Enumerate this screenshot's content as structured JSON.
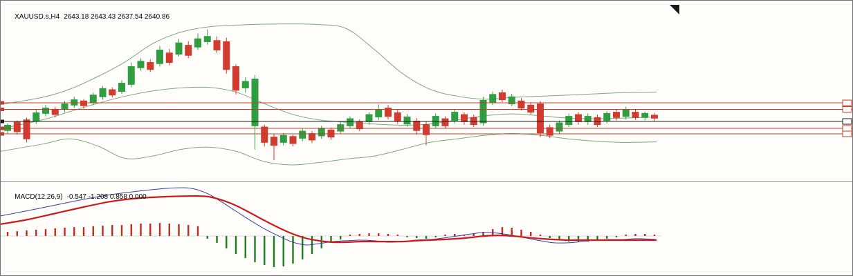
{
  "price_panel": {
    "symbol_label": "XAUUSD.s,H4",
    "ohlc_label": "2643.18 2643.43 2637.54 2640.86"
  },
  "macd_panel": {
    "indicator_label": "MACD(12,26,9)",
    "values_label": "-0.547 -1.208 0.858 0.000"
  },
  "colors": {
    "background": "#fffefa",
    "border": "#707070",
    "bull": "#2f9e41",
    "bear": "#d23b2f",
    "bollinger": "#79a87e",
    "hline_red": "#c43a2e",
    "trend_black": "#1a1a1a",
    "macd_line_blue": "#3a3aa8",
    "signal_line_red": "#cc1a1a",
    "hist_up_red": "#c22a1e",
    "hist_down_green": "#1c7d1c",
    "separator": "#8a8a8a",
    "zero_line": "#dcdcdc",
    "text": "#000000",
    "marker": "#1a1a1a"
  },
  "chart_data": [
    {
      "type": "candlestick",
      "title": "XAUUSD.s,H4",
      "ohlc_current": {
        "open": 2643.18,
        "high": 2643.43,
        "low": 2637.54,
        "close": 2640.86
      },
      "price_axis": {
        "min": 2534,
        "max": 2830,
        "labels_visible": false
      },
      "grid": false,
      "legend": false,
      "candles": [
        [
          2620,
          2632,
          2615,
          2629
        ],
        [
          2634,
          2637,
          2613,
          2618
        ],
        [
          2638,
          2642,
          2600,
          2606
        ],
        [
          2636,
          2655,
          2631,
          2650
        ],
        [
          2649,
          2663,
          2644,
          2658
        ],
        [
          2656,
          2660,
          2642,
          2647
        ],
        [
          2656,
          2670,
          2651,
          2665
        ],
        [
          2663,
          2677,
          2658,
          2672
        ],
        [
          2670,
          2673,
          2657,
          2662
        ],
        [
          2668,
          2684,
          2663,
          2680
        ],
        [
          2677,
          2695,
          2672,
          2691
        ],
        [
          2689,
          2693,
          2676,
          2680
        ],
        [
          2686,
          2705,
          2682,
          2700
        ],
        [
          2698,
          2735,
          2693,
          2728
        ],
        [
          2726,
          2742,
          2721,
          2737
        ],
        [
          2735,
          2740,
          2719,
          2723
        ],
        [
          2733,
          2763,
          2728,
          2756
        ],
        [
          2751,
          2758,
          2730,
          2735
        ],
        [
          2749,
          2775,
          2745,
          2768
        ],
        [
          2764,
          2771,
          2742,
          2747
        ],
        [
          2761,
          2784,
          2756,
          2775
        ],
        [
          2770,
          2791,
          2765,
          2779
        ],
        [
          2772,
          2779,
          2751,
          2756
        ],
        [
          2770,
          2777,
          2716,
          2723
        ],
        [
          2728,
          2732,
          2681,
          2688
        ],
        [
          2692,
          2710,
          2684,
          2703
        ],
        [
          2628,
          2714,
          2588,
          2707
        ],
        [
          2626,
          2630,
          2593,
          2600
        ],
        [
          2609,
          2614,
          2570,
          2595
        ],
        [
          2600,
          2616,
          2595,
          2612
        ],
        [
          2610,
          2613,
          2593,
          2598
        ],
        [
          2607,
          2623,
          2602,
          2619
        ],
        [
          2615,
          2619,
          2599,
          2604
        ],
        [
          2611,
          2628,
          2606,
          2624
        ],
        [
          2621,
          2625,
          2604,
          2609
        ],
        [
          2619,
          2635,
          2614,
          2630
        ],
        [
          2628,
          2644,
          2623,
          2640
        ],
        [
          2635,
          2639,
          2619,
          2623
        ],
        [
          2635,
          2651,
          2630,
          2647
        ],
        [
          2643,
          2664,
          2638,
          2655
        ],
        [
          2658,
          2663,
          2639,
          2644
        ],
        [
          2650,
          2655,
          2631,
          2636
        ],
        [
          2631,
          2648,
          2627,
          2643
        ],
        [
          2636,
          2641,
          2613,
          2620
        ],
        [
          2630,
          2635,
          2595,
          2613
        ],
        [
          2628,
          2649,
          2623,
          2644
        ],
        [
          2640,
          2644,
          2623,
          2628
        ],
        [
          2637,
          2656,
          2632,
          2651
        ],
        [
          2647,
          2651,
          2630,
          2635
        ],
        [
          2642,
          2647,
          2626,
          2630
        ],
        [
          2633,
          2677,
          2628,
          2671
        ],
        [
          2667,
          2686,
          2663,
          2681
        ],
        [
          2684,
          2689,
          2668,
          2672
        ],
        [
          2665,
          2682,
          2661,
          2677
        ],
        [
          2670,
          2675,
          2654,
          2658
        ],
        [
          2663,
          2668,
          2646,
          2651
        ],
        [
          2665,
          2670,
          2609,
          2616
        ],
        [
          2625,
          2630,
          2607,
          2612
        ],
        [
          2619,
          2637,
          2614,
          2633
        ],
        [
          2630,
          2649,
          2626,
          2644
        ],
        [
          2647,
          2651,
          2630,
          2635
        ],
        [
          2635,
          2649,
          2630,
          2644
        ],
        [
          2642,
          2647,
          2626,
          2630
        ],
        [
          2637,
          2653,
          2632,
          2649
        ],
        [
          2651,
          2656,
          2637,
          2642
        ],
        [
          2644,
          2660,
          2639,
          2655
        ],
        [
          2651,
          2656,
          2638,
          2642
        ],
        [
          2642,
          2652,
          2637,
          2649
        ],
        [
          2646,
          2650,
          2636,
          2640.9
        ]
      ],
      "bollinger": {
        "upper": [
          [
            0,
            2664
          ],
          [
            60,
            2676
          ],
          [
            100,
            2690
          ],
          [
            140,
            2711
          ],
          [
            180,
            2736
          ],
          [
            220,
            2767
          ],
          [
            260,
            2786
          ],
          [
            300,
            2795
          ],
          [
            340,
            2798
          ],
          [
            400,
            2800
          ],
          [
            460,
            2799
          ],
          [
            500,
            2792
          ],
          [
            540,
            2757
          ],
          [
            580,
            2717
          ],
          [
            620,
            2690
          ],
          [
            660,
            2678
          ],
          [
            700,
            2673
          ],
          [
            740,
            2676
          ],
          [
            780,
            2678
          ],
          [
            820,
            2680
          ],
          [
            860,
            2682
          ],
          [
            900,
            2684
          ],
          [
            948,
            2685
          ]
        ],
        "middle": [
          [
            0,
            2623
          ],
          [
            60,
            2638
          ],
          [
            100,
            2652
          ],
          [
            140,
            2666
          ],
          [
            180,
            2678
          ],
          [
            220,
            2687
          ],
          [
            260,
            2692
          ],
          [
            300,
            2693
          ],
          [
            340,
            2685
          ],
          [
            380,
            2666
          ],
          [
            420,
            2648
          ],
          [
            460,
            2638
          ],
          [
            500,
            2634
          ],
          [
            540,
            2631
          ],
          [
            580,
            2629
          ],
          [
            620,
            2631
          ],
          [
            660,
            2638
          ],
          [
            700,
            2645
          ],
          [
            740,
            2648
          ],
          [
            780,
            2645
          ],
          [
            820,
            2641
          ],
          [
            860,
            2640
          ],
          [
            900,
            2641
          ],
          [
            948,
            2643
          ]
        ],
        "lower": [
          [
            0,
            2585
          ],
          [
            60,
            2597
          ],
          [
            100,
            2606
          ],
          [
            140,
            2594
          ],
          [
            180,
            2573
          ],
          [
            220,
            2577
          ],
          [
            260,
            2588
          ],
          [
            300,
            2592
          ],
          [
            340,
            2585
          ],
          [
            380,
            2568
          ],
          [
            420,
            2562
          ],
          [
            460,
            2566
          ],
          [
            500,
            2572
          ],
          [
            540,
            2577
          ],
          [
            580,
            2588
          ],
          [
            620,
            2600
          ],
          [
            660,
            2606
          ],
          [
            700,
            2612
          ],
          [
            740,
            2615
          ],
          [
            780,
            2612
          ],
          [
            820,
            2606
          ],
          [
            860,
            2602
          ],
          [
            900,
            2600
          ],
          [
            948,
            2601
          ]
        ]
      },
      "hlines": [
        {
          "price": 2666.8,
          "color": "#c43a2e"
        },
        {
          "price": 2655.8,
          "color": "#c43a2e"
        },
        {
          "price": 2635.4,
          "color": "#1a1a1a"
        },
        {
          "price": 2623.7,
          "color": "#c43a2e"
        },
        {
          "price": 2614.4,
          "color": "#c43a2e"
        }
      ]
    },
    {
      "type": "macd",
      "label": "MACD(12,26,9)",
      "current_values": [
        -0.547,
        -1.208,
        0.858,
        0.0
      ],
      "histogram": [
        2,
        2.3,
        2.7,
        3,
        3.3,
        3.7,
        4,
        4.3,
        4.3,
        4.7,
        5,
        5.3,
        5.3,
        5.7,
        6,
        6,
        6.3,
        6,
        5.7,
        5.3,
        4.7,
        -1.3,
        -3.3,
        -6,
        -8.7,
        -10.7,
        -12.7,
        -14,
        -15,
        -14.7,
        -13.3,
        -11.3,
        -8.7,
        -6,
        -3.3,
        -1.7,
        0.7,
        1,
        1.3,
        1.3,
        1,
        0.7,
        -0.7,
        -1,
        -1.3,
        -0.7,
        0.7,
        1,
        0.7,
        1.3,
        2,
        3.3,
        4.3,
        4,
        3,
        2,
        0.7,
        -1,
        -2,
        -2.7,
        -3,
        -2.7,
        -2,
        -1.3,
        -0.7,
        0.7,
        1,
        1,
        0.7
      ],
      "macd_line": [
        [
          0,
          9.7
        ],
        [
          40,
          12.3
        ],
        [
          80,
          15
        ],
        [
          120,
          17.7
        ],
        [
          160,
          20
        ],
        [
          200,
          21.7
        ],
        [
          240,
          23
        ],
        [
          265,
          23.3
        ],
        [
          280,
          22.7
        ],
        [
          300,
          20.3
        ],
        [
          320,
          16.3
        ],
        [
          340,
          12
        ],
        [
          360,
          7.7
        ],
        [
          380,
          3.7
        ],
        [
          400,
          0.3
        ],
        [
          420,
          -2.7
        ],
        [
          440,
          -4.3
        ],
        [
          460,
          -3.7
        ],
        [
          480,
          -2.7
        ],
        [
          500,
          -2.3
        ],
        [
          520,
          -2
        ],
        [
          540,
          -2.3
        ],
        [
          560,
          -3
        ],
        [
          580,
          -2.7
        ],
        [
          600,
          -2
        ],
        [
          620,
          -1.7
        ],
        [
          640,
          -1
        ],
        [
          660,
          0
        ],
        [
          680,
          1
        ],
        [
          700,
          1.7
        ],
        [
          720,
          1.3
        ],
        [
          740,
          0.3
        ],
        [
          760,
          -1
        ],
        [
          780,
          -2.3
        ],
        [
          800,
          -3.3
        ],
        [
          820,
          -3.3
        ],
        [
          840,
          -2.7
        ],
        [
          860,
          -2
        ],
        [
          880,
          -1.7
        ],
        [
          900,
          -1.7
        ],
        [
          920,
          -1.3
        ],
        [
          948,
          -1.7
        ]
      ],
      "signal_line": [
        [
          0,
          5.7
        ],
        [
          40,
          8
        ],
        [
          80,
          11
        ],
        [
          120,
          14
        ],
        [
          160,
          16.7
        ],
        [
          200,
          18.3
        ],
        [
          240,
          19
        ],
        [
          280,
          19.3
        ],
        [
          300,
          19
        ],
        [
          320,
          17.3
        ],
        [
          340,
          14.7
        ],
        [
          360,
          11.3
        ],
        [
          380,
          7.7
        ],
        [
          400,
          4.3
        ],
        [
          420,
          1.3
        ],
        [
          440,
          -1
        ],
        [
          460,
          -2.3
        ],
        [
          480,
          -3
        ],
        [
          500,
          -3
        ],
        [
          520,
          -2.7
        ],
        [
          540,
          -2.7
        ],
        [
          560,
          -2.7
        ],
        [
          580,
          -2.7
        ],
        [
          600,
          -2.3
        ],
        [
          620,
          -2
        ],
        [
          640,
          -1.7
        ],
        [
          660,
          -1.3
        ],
        [
          680,
          -0.7
        ],
        [
          700,
          0
        ],
        [
          720,
          0.3
        ],
        [
          740,
          0
        ],
        [
          760,
          -0.7
        ],
        [
          780,
          -1.3
        ],
        [
          800,
          -1.7
        ],
        [
          820,
          -2
        ],
        [
          840,
          -2
        ],
        [
          860,
          -2
        ],
        [
          880,
          -2
        ],
        [
          900,
          -2
        ],
        [
          920,
          -2
        ],
        [
          948,
          -2
        ]
      ]
    }
  ]
}
